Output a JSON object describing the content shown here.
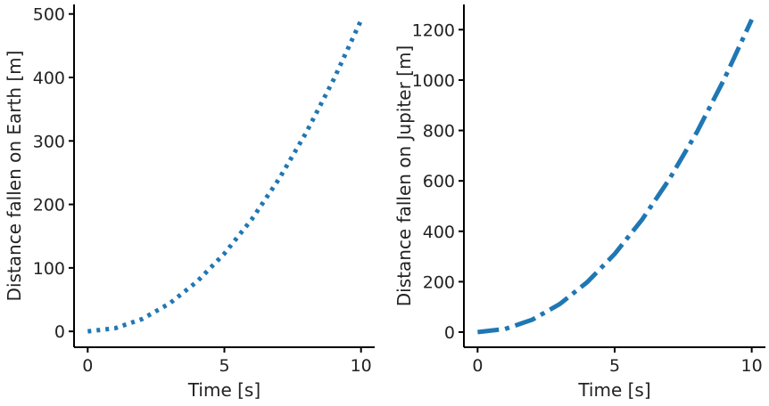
{
  "chart_data": [
    {
      "type": "line",
      "xlabel": "Time [s]",
      "ylabel": "Distance fallen on Earth [m]",
      "xlim": [
        -0.5,
        10.5
      ],
      "ylim": [
        -25,
        515
      ],
      "xticks": [
        "0",
        "5",
        "10"
      ],
      "yticks": [
        "0",
        "100",
        "200",
        "300",
        "400",
        "500"
      ],
      "line_style": "dotted",
      "color": "#1f77b4",
      "series": [
        {
          "x": [
            0,
            1,
            2,
            3,
            4,
            5,
            6,
            7,
            8,
            9,
            10
          ],
          "values": [
            0,
            4.9,
            19.6,
            44.1,
            78.4,
            122.5,
            176.4,
            240.1,
            313.6,
            396.9,
            490
          ]
        }
      ]
    },
    {
      "type": "line",
      "xlabel": "Time [s]",
      "ylabel": "Distance fallen on Jupiter [m]",
      "xlim": [
        -0.5,
        10.5
      ],
      "ylim": [
        -60,
        1300
      ],
      "xticks": [
        "0",
        "5",
        "10"
      ],
      "yticks": [
        "0",
        "200",
        "400",
        "600",
        "800",
        "1000",
        "1200"
      ],
      "line_style": "dashdot",
      "color": "#1f77b4",
      "series": [
        {
          "x": [
            0,
            1,
            2,
            3,
            4,
            5,
            6,
            7,
            8,
            9,
            10
          ],
          "values": [
            0,
            12.4,
            49.6,
            111.6,
            198.4,
            310,
            446.4,
            607.6,
            793.6,
            1004.4,
            1240
          ]
        }
      ]
    }
  ]
}
